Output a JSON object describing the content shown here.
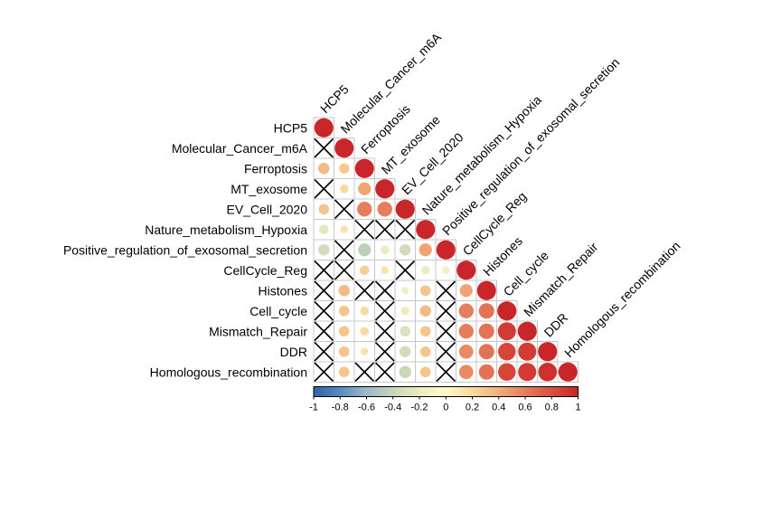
{
  "chart_data": {
    "type": "heatmap",
    "subtype": "correlation-matrix-lower-triangle",
    "variables": [
      "HCP5",
      "Molecular_Cancer_m6A",
      "Ferroptosis",
      "MT_exosome",
      "EV_Cell_2020",
      "Nature_metabolism_Hypoxia",
      "Positive_regulation_of_exosomal_secretion",
      "CellCycle_Reg",
      "Histones",
      "Cell_cycle",
      "Mismatch_Repair",
      "DDR",
      "Homologous_recombination"
    ],
    "matrix": [
      [
        1.0
      ],
      [
        null,
        1.0
      ],
      [
        0.35,
        0.28,
        1.0
      ],
      [
        null,
        0.2,
        0.45,
        1.0
      ],
      [
        0.3,
        null,
        0.6,
        0.6,
        1.0
      ],
      [
        -0.25,
        0.15,
        null,
        null,
        null,
        1.0
      ],
      [
        -0.35,
        null,
        -0.45,
        -0.2,
        -0.35,
        0.45,
        1.0
      ],
      [
        null,
        null,
        0.25,
        0.15,
        null,
        -0.2,
        -0.15,
        1.0
      ],
      [
        null,
        0.35,
        null,
        null,
        -0.15,
        0.3,
        null,
        0.45,
        1.0
      ],
      [
        null,
        0.3,
        0.2,
        null,
        -0.2,
        0.35,
        null,
        0.6,
        0.65,
        1.0
      ],
      [
        null,
        0.3,
        0.2,
        null,
        -0.3,
        0.3,
        null,
        0.6,
        0.65,
        0.9,
        1.0
      ],
      [
        null,
        0.3,
        0.15,
        null,
        -0.35,
        0.3,
        null,
        0.55,
        0.65,
        0.85,
        0.9,
        1.0
      ],
      [
        null,
        0.3,
        null,
        null,
        -0.4,
        0.3,
        null,
        0.55,
        0.65,
        0.85,
        0.9,
        0.95,
        1.0
      ]
    ],
    "legend": {
      "position": "bottom",
      "ticks": [
        "-1",
        "-0.8",
        "-0.6",
        "-0.4",
        "-0.2",
        "0",
        "0.2",
        "0.4",
        "0.6",
        "0.8",
        "1"
      ],
      "range": [
        -1,
        1
      ],
      "colors": [
        "#2F62A8",
        "#5A8BBF",
        "#9DB8C8",
        "#C9D6B8",
        "#EDEBC0",
        "#FFFAC8",
        "#F8D9A0",
        "#F1B07A",
        "#E57E5C",
        "#D9503E",
        "#C8262A"
      ]
    },
    "insignificant_marker": "X"
  }
}
